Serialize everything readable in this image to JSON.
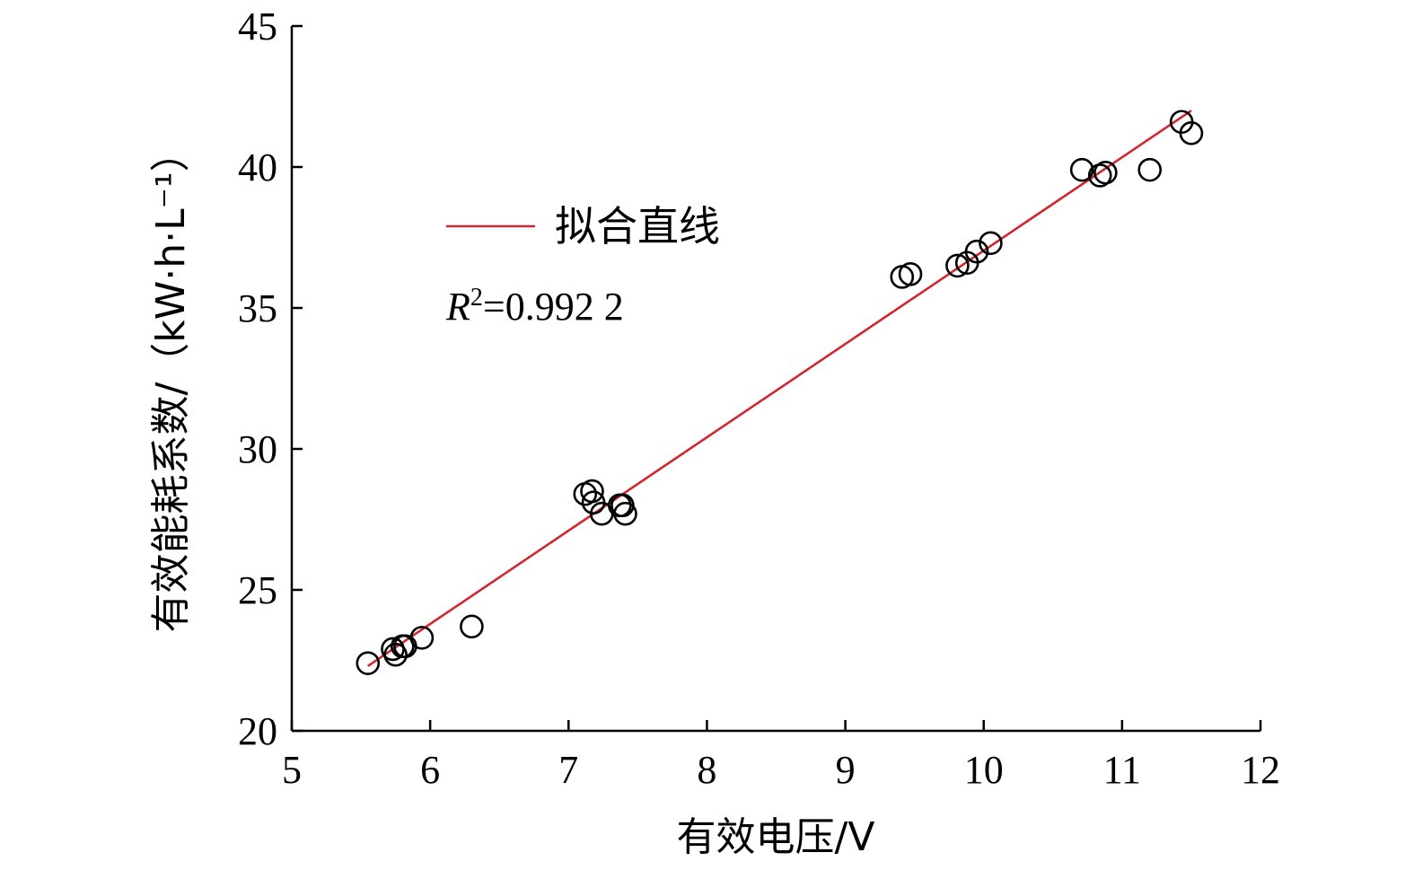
{
  "chart_data": {
    "type": "scatter",
    "xlabel": "有效电压/V",
    "ylabel": "有效能耗系数/（kW·h·L⁻¹）",
    "xlim": [
      5,
      12
    ],
    "ylim": [
      20,
      45
    ],
    "xticks": [
      5,
      6,
      7,
      8,
      9,
      10,
      11,
      12
    ],
    "yticks": [
      20,
      25,
      30,
      35,
      40,
      45
    ],
    "grid": false,
    "legend_position": "top-left",
    "series": [
      {
        "x": [
          5.55,
          5.73,
          5.75,
          5.8,
          5.82,
          5.94,
          6.3,
          7.12,
          7.17,
          7.18,
          7.24,
          7.37,
          7.39,
          7.41,
          9.41,
          9.47,
          9.81,
          9.88,
          9.95,
          10.05,
          10.71,
          10.84,
          10.88,
          11.2,
          11.43,
          11.5
        ],
        "y": [
          22.4,
          22.9,
          22.7,
          23.0,
          23.0,
          23.3,
          23.7,
          28.4,
          28.5,
          28.1,
          27.7,
          28.0,
          28.0,
          27.7,
          36.1,
          36.2,
          36.5,
          36.6,
          37.0,
          37.3,
          39.9,
          39.7,
          39.8,
          39.9,
          41.6,
          41.2
        ]
      },
      {
        "name": "拟合直线",
        "type": "line",
        "x": [
          5.55,
          11.5
        ],
        "y": [
          22.3,
          42.0
        ],
        "color": "#d0282e"
      }
    ],
    "annotations": {
      "r2_symbol": "R",
      "r2_power": "2",
      "r2_value": "=0.992 2"
    }
  }
}
